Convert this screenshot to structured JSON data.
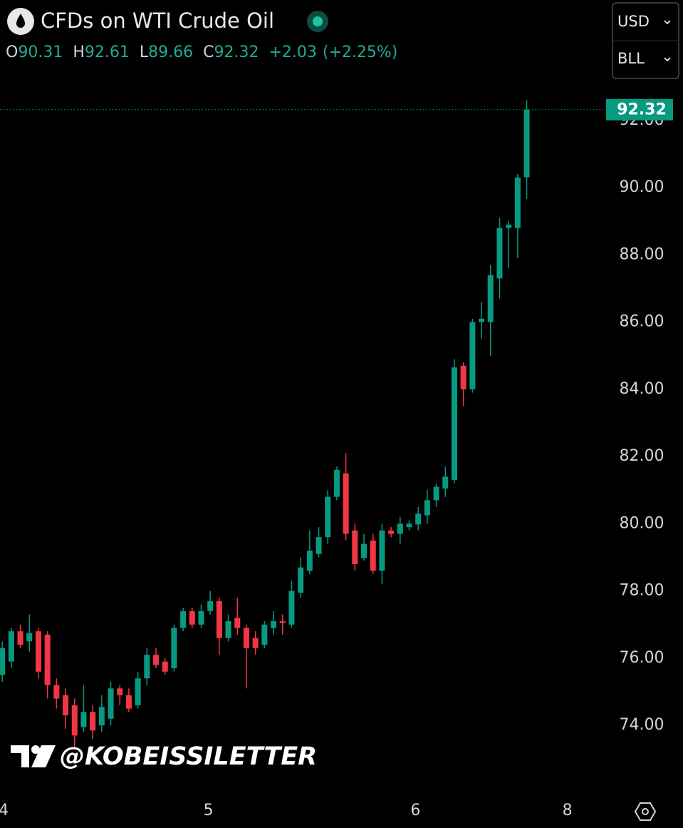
{
  "chart_data": {
    "type": "candlestick",
    "title": "CFDs on WTI Crude Oil",
    "legend": {
      "items": [
        {
          "key": "O",
          "value": "90.31"
        },
        {
          "key": "H",
          "value": "92.61"
        },
        {
          "key": "L",
          "value": "89.66"
        },
        {
          "key": "C",
          "value": "92.32"
        }
      ],
      "change": "+2.03",
      "change_percent": "(+2.25%)"
    },
    "currency": "USD",
    "unit": "BLL",
    "watermark": "@KOBEISSILETTER",
    "x": [
      0,
      1,
      2,
      3,
      4,
      5,
      6,
      7,
      8,
      9,
      10,
      11,
      12,
      13,
      14,
      15,
      16,
      17,
      18,
      19,
      20,
      21,
      22,
      23,
      24,
      25,
      26,
      27,
      28,
      29,
      30,
      31,
      32,
      33,
      34,
      35,
      36,
      37,
      38,
      39,
      40,
      41,
      42,
      43,
      44,
      45,
      46,
      47,
      48,
      49,
      50,
      51,
      52,
      53,
      54,
      55,
      56,
      57,
      58
    ],
    "open": [
      75.5,
      75.9,
      76.8,
      76.5,
      76.8,
      76.7,
      75.2,
      74.9,
      74.6,
      73.95,
      74.4,
      74.0,
      74.2,
      75.1,
      74.9,
      74.6,
      75.4,
      76.1,
      75.9,
      75.7,
      76.9,
      77.4,
      77.0,
      77.4,
      77.7,
      76.6,
      77.2,
      76.9,
      76.6,
      76.4,
      76.9,
      77.1,
      77.0,
      77.95,
      78.6,
      79.1,
      79.6,
      80.8,
      81.5,
      79.8,
      78.98,
      79.5,
      78.6,
      79.8,
      79.7,
      79.9,
      79.98,
      80.25,
      80.7,
      81.05,
      81.3,
      84.7,
      84.0,
      86.0,
      86.0,
      87.3,
      88.8,
      88.8,
      90.31
    ],
    "high": [
      76.5,
      76.9,
      77.0,
      77.3,
      76.9,
      76.8,
      75.4,
      75.1,
      74.8,
      75.2,
      74.6,
      74.9,
      75.3,
      75.2,
      75.1,
      75.6,
      76.3,
      76.3,
      76.0,
      77.0,
      77.5,
      77.5,
      77.6,
      78.0,
      77.8,
      77.3,
      77.8,
      77.0,
      76.8,
      77.1,
      77.4,
      77.3,
      78.3,
      79.0,
      79.8,
      79.9,
      81.0,
      81.7,
      82.1,
      80.0,
      79.7,
      79.7,
      80.0,
      79.9,
      80.2,
      80.1,
      80.5,
      81.0,
      81.2,
      81.7,
      84.9,
      84.8,
      86.1,
      86.6,
      87.7,
      89.1,
      89.0,
      90.4,
      92.61
    ],
    "low": [
      75.3,
      75.7,
      76.3,
      76.2,
      75.4,
      74.8,
      74.5,
      73.9,
      73.3,
      73.8,
      73.6,
      73.8,
      74.0,
      74.6,
      74.4,
      74.5,
      75.2,
      75.7,
      75.5,
      75.6,
      76.8,
      76.9,
      76.9,
      77.3,
      76.1,
      76.5,
      76.7,
      75.1,
      76.1,
      76.3,
      76.7,
      76.7,
      76.9,
      77.8,
      78.5,
      79.0,
      79.4,
      80.7,
      79.5,
      78.6,
      78.9,
      78.5,
      78.2,
      79.6,
      79.4,
      79.8,
      79.8,
      80.0,
      80.5,
      80.8,
      81.2,
      83.5,
      83.9,
      85.5,
      85.0,
      86.7,
      87.6,
      87.9,
      89.66
    ],
    "close": [
      76.3,
      76.8,
      76.4,
      76.75,
      75.6,
      75.2,
      74.8,
      74.3,
      73.7,
      74.4,
      73.85,
      74.55,
      75.1,
      74.9,
      74.5,
      75.4,
      76.1,
      75.8,
      75.6,
      76.9,
      77.4,
      77.0,
      77.4,
      77.7,
      76.6,
      77.1,
      76.9,
      76.3,
      76.3,
      77.0,
      77.1,
      77.05,
      78.0,
      78.7,
      79.2,
      79.6,
      80.8,
      81.6,
      79.7,
      78.8,
      79.4,
      78.6,
      79.8,
      79.7,
      80.0,
      80.0,
      80.3,
      80.7,
      81.1,
      81.4,
      84.65,
      84.0,
      86.0,
      86.1,
      87.4,
      88.8,
      88.9,
      90.3,
      92.32
    ],
    "up_color": "#089981",
    "down_color": "#f23645",
    "xlim": [
      -0.25,
      66.7
    ],
    "xticks": [
      {
        "value": 0.15,
        "label": "4"
      },
      {
        "value": 22.8,
        "label": "5"
      },
      {
        "value": 45.7,
        "label": "6"
      },
      {
        "value": 62.5,
        "label": "8"
      }
    ],
    "ylim": [
      72.03,
      93.46
    ],
    "yticks": [
      {
        "value": 74,
        "label": "74.00"
      },
      {
        "value": 76,
        "label": "76.00"
      },
      {
        "value": 78,
        "label": "78.00"
      },
      {
        "value": 80,
        "label": "80.00"
      },
      {
        "value": 82,
        "label": "82.00"
      },
      {
        "value": 84,
        "label": "84.00"
      },
      {
        "value": 86,
        "label": "86.00"
      },
      {
        "value": 88,
        "label": "88.00"
      },
      {
        "value": 90,
        "label": "90.00"
      },
      {
        "value": 92,
        "label": "92.00"
      }
    ],
    "last_price_line": true
  }
}
